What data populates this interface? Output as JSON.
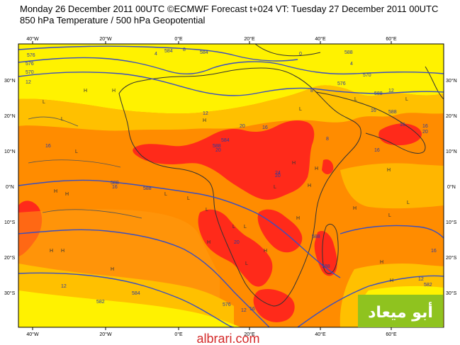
{
  "header": {
    "title": "Monday 26 December 2011 00UTC ©ECMWF Forecast t+024 VT: Tuesday 27 December 2011 00UTC",
    "subtitle": "850 hPa Temperature / 500 hPa Geopotential"
  },
  "axes": {
    "top_lon": [
      "40°W",
      "20°W",
      "0°E",
      "20°E",
      "40°E",
      "60°E"
    ],
    "bottom_lon": [
      "40°W",
      "20°W",
      "0°E",
      "20°E",
      "40°E",
      "60°E"
    ],
    "left_lat": [
      "30°N",
      "20°N",
      "10°N",
      "0°N",
      "10°S",
      "20°S",
      "30°S"
    ],
    "right_lat": [
      "30°N",
      "20°N",
      "10°N",
      "0°N",
      "10°S",
      "20°S",
      "30°S"
    ]
  },
  "contour_labels": [
    "576",
    "576",
    "570",
    "12",
    "4",
    "584",
    "8",
    "584",
    "0",
    "588",
    "4",
    "576",
    "570",
    "12",
    "588",
    "12",
    "8",
    "16",
    "20",
    "588",
    "16",
    "588",
    "8",
    "16",
    "20",
    "16",
    "16",
    "588",
    "20",
    "584",
    "20",
    "24",
    "20",
    "16",
    "12",
    "584",
    "588",
    "16",
    "12",
    "588",
    "582",
    "576",
    "16",
    "12",
    "588",
    "582",
    "16"
  ],
  "pressure_marks": [
    "L",
    "L",
    "H",
    "H",
    "L",
    "H",
    "H",
    "L",
    "L",
    "H",
    "H",
    "H",
    "L",
    "H",
    "L",
    "L",
    "H",
    "H",
    "L",
    "H",
    "H",
    "L",
    "L",
    "L",
    "H",
    "H",
    "L",
    "L",
    "H",
    "H",
    "H",
    "H",
    "L"
  ],
  "watermark": {
    "arabic": "أبو ميعاد",
    "site": "albrari.com"
  },
  "colors": {
    "yellow": "#fff200",
    "light_orange": "#ffc000",
    "orange": "#ff8c00",
    "dark_orange": "#ff6a00",
    "red": "#ff2a1a",
    "contour": "#3a4fc0",
    "land_outline": "#333333",
    "brand_green": "#8fc31f",
    "brand_text": "#ffffff",
    "site_text": "#d42a2a"
  }
}
